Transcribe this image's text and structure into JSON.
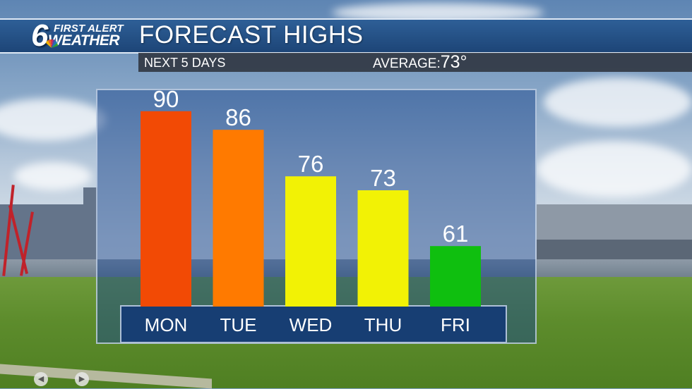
{
  "branding": {
    "channel_number": "6",
    "line1": "FIRST ALERT",
    "line2": "WEATHER",
    "network_icon": "peacock-icon"
  },
  "header": {
    "title": "FORECAST HIGHS",
    "subtitle": "NEXT 5 DAYS",
    "average_label": "AVERAGE:",
    "average_value": "73°"
  },
  "colors": {
    "header_blue": "#2a5a92",
    "hot_red": "#f24a05",
    "warm_orange": "#ff7a00",
    "mild_yellow": "#f2f205",
    "cool_green": "#0fbf0f"
  },
  "navigation": {
    "prev_icon": "chevron-left-icon",
    "next_icon": "chevron-right-icon"
  },
  "chart_data": {
    "type": "bar",
    "title": "FORECAST HIGHS",
    "categories": [
      "MON",
      "TUE",
      "WED",
      "THU",
      "FRI"
    ],
    "values": [
      90,
      86,
      76,
      73,
      61
    ],
    "bar_colors": [
      "#f24a05",
      "#ff7a00",
      "#f2f205",
      "#f2f205",
      "#0fbf0f"
    ],
    "ylim": [
      50,
      90
    ],
    "grid": false,
    "legend": "none"
  }
}
